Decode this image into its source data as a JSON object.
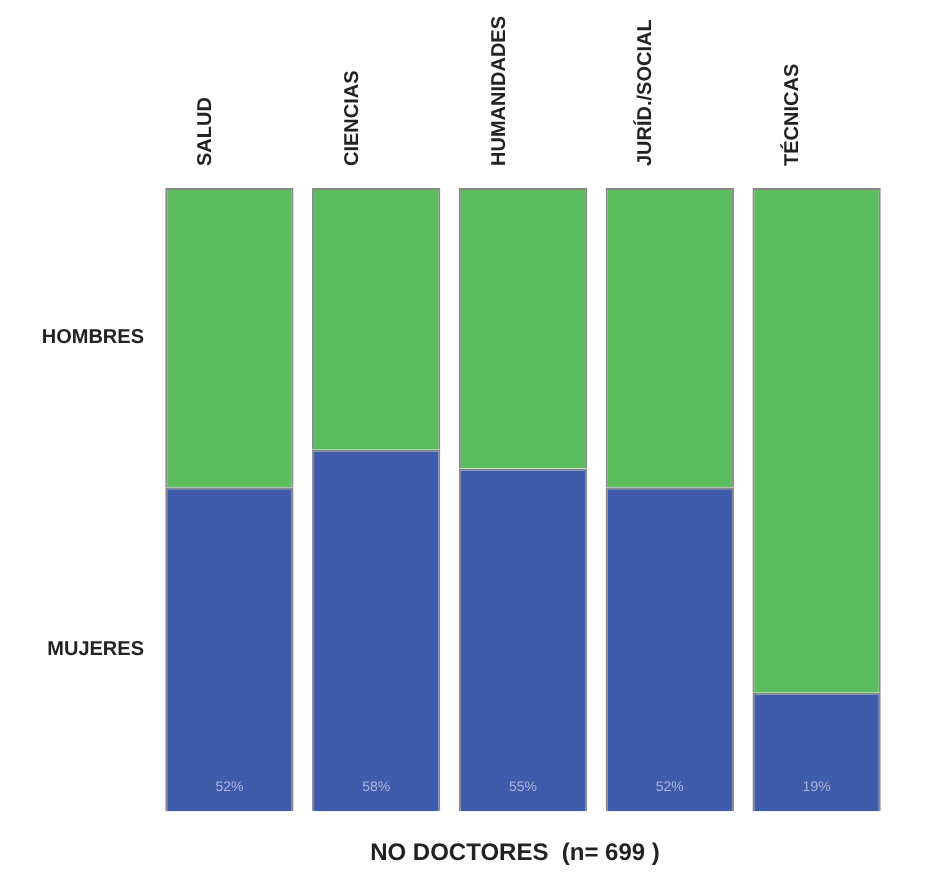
{
  "chart_data": {
    "type": "bar",
    "title": "NO DOCTORES  (n= 699 )",
    "categories": [
      "SALUD",
      "CIENCIAS",
      "HUMANIDADES",
      "JURÍD./SOCIAL",
      "TÉCNICAS"
    ],
    "stacked": true,
    "ylim": [
      0,
      100
    ],
    "tick_labels": "x",
    "series": [
      {
        "name": "MUJERES",
        "color": "#3f5bab",
        "values": [
          52,
          58,
          55,
          52,
          19
        ],
        "value_labels": [
          "52%",
          "58%",
          "55%",
          "52%",
          "19%"
        ]
      },
      {
        "name": "HOMBRES",
        "color": "#5bbd5e",
        "values": [
          48,
          42,
          45,
          48,
          81
        ]
      }
    ],
    "legend": false
  }
}
